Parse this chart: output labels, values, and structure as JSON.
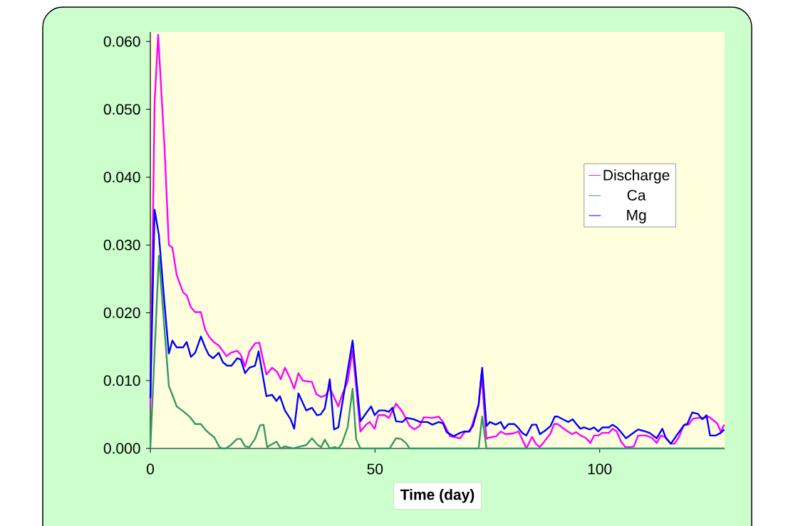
{
  "chart_data": {
    "type": "line",
    "xlabel": "Time (day)",
    "xlim": [
      0,
      127.8
    ],
    "ylim": [
      0,
      0.0614
    ],
    "xticks": [
      0,
      50,
      100
    ],
    "yticks": [
      {
        "value": 0,
        "label": "0.000"
      },
      {
        "value": 0.01,
        "label": "0.010"
      },
      {
        "value": 0.02,
        "label": "0.020"
      },
      {
        "value": 0.03,
        "label": "0.030"
      },
      {
        "value": 0.04,
        "label": "0.040"
      },
      {
        "value": 0.05,
        "label": "0.050"
      },
      {
        "value": 0.06,
        "label": "0.060"
      }
    ],
    "legend": "right",
    "series": [
      {
        "name": "Discharge",
        "color": "#ff00ff",
        "x": [
          0,
          0.95,
          1.74,
          3.17,
          4.12,
          4.91,
          5.86,
          7.29,
          8.08,
          9.03,
          9.98,
          11.25,
          12.2,
          13.15,
          14.1,
          15.21,
          16.96,
          17.91,
          19.33,
          20.13,
          21.08,
          22.03,
          23.3,
          24.25,
          25.83,
          27.1,
          28.2,
          29.0,
          29.95,
          31.06,
          32.01,
          32.96,
          33.91,
          35.97,
          36.93,
          38.03,
          38.99,
          39.94,
          41.84,
          42.79,
          43.9,
          45.01,
          46.75,
          48.02,
          48.81,
          49.92,
          50.71,
          52.14,
          53.09,
          54.68,
          56.1,
          57.69,
          58.8,
          59.9,
          60.86,
          62.76,
          64.18,
          65.13,
          66.72,
          68.94,
          70.05,
          71.16,
          73.06,
          73.69,
          74.8,
          75.44,
          77.02,
          77.97,
          79.08,
          80.67,
          81.93,
          82.73,
          83.68,
          84.94,
          85.9,
          86.69,
          88.11,
          89.06,
          89.86,
          90.65,
          92.23,
          93.82,
          94.77,
          95.72,
          96.83,
          97.94,
          98.73,
          99.68,
          100.63,
          102.06,
          102.85,
          103.8,
          104.75,
          105.71,
          106.81,
          107.61,
          108.56,
          110.3,
          111.57,
          112.68,
          113.63,
          114.74,
          115.85,
          116.64,
          117.59,
          118.7,
          119.81,
          120.76,
          121.87,
          123.45,
          124.25,
          126.15,
          126.94,
          127.73
        ],
        "values": [
          0.0062,
          0.051,
          0.061,
          0.0442,
          0.03,
          0.0296,
          0.0256,
          0.023,
          0.0226,
          0.0208,
          0.0201,
          0.0201,
          0.0175,
          0.0164,
          0.0157,
          0.0152,
          0.0136,
          0.0141,
          0.0144,
          0.0138,
          0.0121,
          0.0143,
          0.0155,
          0.0156,
          0.0109,
          0.0119,
          0.0113,
          0.0102,
          0.0119,
          0.0104,
          0.0088,
          0.0111,
          0.01,
          0.0098,
          0.008,
          0.0076,
          0.0078,
          0.0089,
          0.0062,
          0.0081,
          0.0098,
          0.0145,
          0.0025,
          0.0035,
          0.0039,
          0.0029,
          0.0049,
          0.0049,
          0.0045,
          0.0066,
          0.0054,
          0.0033,
          0.0028,
          0.0033,
          0.0046,
          0.0045,
          0.0047,
          0.0039,
          0.0018,
          0.0015,
          0.0025,
          0.0025,
          0.0065,
          0.011,
          0.0014,
          0.0016,
          0.0018,
          0.0025,
          0.0021,
          0.0022,
          0.0025,
          0.0014,
          0,
          0.0017,
          0.0006,
          0.0002,
          0.0014,
          0.0022,
          0.0036,
          0.0036,
          0.0028,
          0.0021,
          0.0024,
          0.0019,
          0.0016,
          0.0008,
          0.0019,
          0.0019,
          0.0023,
          0.0023,
          0.0029,
          0.0025,
          0.001,
          0.0002,
          0.0002,
          0.0003,
          0.0019,
          0.0019,
          0.0016,
          0.0008,
          0.0019,
          0.0016,
          0.0007,
          0.0007,
          0.0016,
          0.0034,
          0.0035,
          0.0044,
          0.0045,
          0.0045,
          0.0047,
          0.0037,
          0.0025,
          0.0035
        ]
      },
      {
        "name": "Ca",
        "color": "#339966",
        "x": [
          0,
          1.9,
          4.12,
          4.91,
          5.86,
          7.29,
          8.87,
          9.98,
          11.25,
          12.2,
          13.15,
          14.26,
          15.37,
          16.16,
          16.8,
          17.91,
          19.33,
          20.13,
          21.08,
          22.03,
          23.3,
          24.41,
          25.2,
          25.99,
          28.05,
          29.0,
          29.95,
          31.85,
          32.8,
          34.71,
          35.97,
          37.24,
          38.03,
          38.83,
          39.94,
          41.05,
          41.84,
          42.63,
          43.9,
          45.01,
          45.8,
          46.75,
          53.25,
          54.68,
          55.78,
          56.89,
          57.69,
          73.06,
          73.85,
          74.8,
          127.73
        ],
        "values": [
          0,
          0.0284,
          0.0092,
          0.0079,
          0.0062,
          0.0055,
          0.0046,
          0.0036,
          0.0036,
          0.0028,
          0.0022,
          0.0016,
          0.0002,
          0,
          0,
          0.0005,
          0.0014,
          0.0014,
          0.0003,
          0.0002,
          0.0014,
          0.0034,
          0.0035,
          0.0002,
          0.001,
          0,
          0.0003,
          0,
          0.0002,
          0.0005,
          0.0015,
          0.0005,
          0.0002,
          0.0013,
          0,
          0.0002,
          0,
          0.0007,
          0.0031,
          0.0088,
          0.0014,
          0,
          0,
          0.0015,
          0.0014,
          0.0008,
          0,
          0,
          0.0047,
          0,
          0
        ]
      },
      {
        "name": "Mg",
        "color": "#0000ff",
        "x": [
          0,
          0.95,
          1.9,
          3.17,
          4.12,
          4.91,
          5.86,
          7.29,
          8.08,
          9.03,
          9.98,
          11.25,
          12.2,
          13.0,
          13.95,
          15.21,
          16.16,
          17.12,
          18.07,
          19.33,
          20.13,
          21.08,
          22.03,
          23.3,
          24.09,
          25.83,
          27.1,
          28.05,
          28.84,
          29.95,
          31.22,
          32.01,
          32.96,
          34.71,
          35.97,
          37.08,
          37.88,
          38.83,
          39.94,
          40.89,
          41.84,
          45.01,
          46.75,
          48.02,
          49.13,
          49.92,
          50.87,
          52.14,
          53.09,
          53.88,
          54.68,
          56.1,
          57.05,
          58.64,
          60.06,
          61.65,
          62.76,
          64.18,
          65.13,
          65.93,
          67.51,
          68.94,
          69.89,
          70.84,
          71.79,
          73.06,
          73.85,
          74.8,
          75.59,
          76.86,
          77.97,
          78.76,
          79.71,
          80.98,
          81.93,
          82.73,
          83.68,
          84.94,
          85.9,
          86.69,
          87.8,
          89.06,
          90.02,
          90.65,
          92.08,
          93.03,
          93.98,
          94.93,
          95.72,
          96.51,
          97.78,
          98.73,
          99.68,
          100.63,
          102.06,
          102.85,
          103.8,
          104.75,
          105.86,
          108.56,
          109.67,
          111.09,
          112.68,
          113.95,
          114.74,
          115.85,
          117.43,
          118.86,
          119.49,
          120.6,
          121.87,
          122.82,
          123.77,
          124.56,
          125.83,
          126.94,
          127.73
        ],
        "values": [
          0.0074,
          0.0352,
          0.0315,
          0.0212,
          0.014,
          0.0159,
          0.0149,
          0.0149,
          0.0157,
          0.0135,
          0.0141,
          0.0165,
          0.0149,
          0.0138,
          0.0133,
          0.0141,
          0.0127,
          0.0122,
          0.0122,
          0.0133,
          0.0131,
          0.0111,
          0.0119,
          0.0122,
          0.0143,
          0.0077,
          0.0079,
          0.007,
          0.0077,
          0.0056,
          0.0043,
          0.0029,
          0.0081,
          0.0056,
          0.006,
          0.0049,
          0.005,
          0.0059,
          0.0102,
          0.0028,
          0.0031,
          0.0159,
          0.004,
          0.0052,
          0.0062,
          0.0049,
          0.0056,
          0.0056,
          0.0054,
          0.006,
          0.004,
          0.0039,
          0.0045,
          0.0043,
          0.0039,
          0.0039,
          0.0035,
          0.0039,
          0.0037,
          0.0024,
          0.0018,
          0.0023,
          0.0025,
          0.0025,
          0.0033,
          0.0064,
          0.0119,
          0.0033,
          0.0039,
          0.0035,
          0.0039,
          0.0029,
          0.0036,
          0.0036,
          0.003,
          0.0023,
          0.0019,
          0.0035,
          0.0035,
          0.0021,
          0.0026,
          0.0033,
          0.0047,
          0.0047,
          0.0042,
          0.0039,
          0.0043,
          0.0035,
          0.0029,
          0.0031,
          0.0028,
          0.0031,
          0.0025,
          0.0031,
          0.0031,
          0.0035,
          0.0031,
          0.0024,
          0.0015,
          0.0028,
          0.0026,
          0.0023,
          0.0015,
          0.0029,
          0.0015,
          0.0007,
          0.0022,
          0.0035,
          0.0036,
          0.0053,
          0.0051,
          0.0043,
          0.0049,
          0.0019,
          0.0019,
          0.0023,
          0.0028
        ]
      }
    ]
  }
}
